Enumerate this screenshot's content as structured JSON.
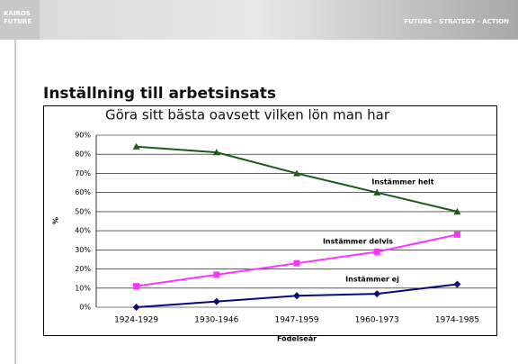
{
  "header": {
    "logo": [
      "KAIROS",
      "FUTURE"
    ],
    "tagline": "FUTURE - STRATEGY - ACTION"
  },
  "slide_title": "Inställning till arbetsinsats",
  "chart_data": {
    "type": "line",
    "title": "Göra sitt bästa oavsett vilken lön man har",
    "x_label": "Födelseår",
    "y_label": "%",
    "categories": [
      "1924-1929",
      "1930-1946",
      "1947-1959",
      "1960-1973",
      "1974-1985"
    ],
    "series": [
      {
        "name": "Instämmer helt",
        "color": "#1e5a1e",
        "marker": "triangle",
        "values": [
          84,
          81,
          70,
          60,
          50
        ]
      },
      {
        "name": "Instämmer delvis",
        "color": "#ff33ff",
        "marker": "square",
        "values": [
          11,
          17,
          23,
          29,
          38
        ]
      },
      {
        "name": "Instämmer ej",
        "color": "#0a0a80",
        "marker": "diamond",
        "values": [
          0,
          3,
          6,
          7,
          12
        ]
      }
    ],
    "ylim": [
      0,
      90
    ],
    "yticks": [
      {
        "value": 0,
        "label": "0%"
      },
      {
        "value": 10,
        "label": "10%"
      },
      {
        "value": 20,
        "label": "20%"
      },
      {
        "value": 30,
        "label": "30%"
      },
      {
        "value": 40,
        "label": "40%"
      },
      {
        "value": 50,
        "label": "50%"
      },
      {
        "value": 60,
        "label": "60%"
      },
      {
        "value": 70,
        "label": "70%"
      },
      {
        "value": 80,
        "label": "80%"
      },
      {
        "value": 90,
        "label": "90%"
      }
    ],
    "grid": true
  }
}
